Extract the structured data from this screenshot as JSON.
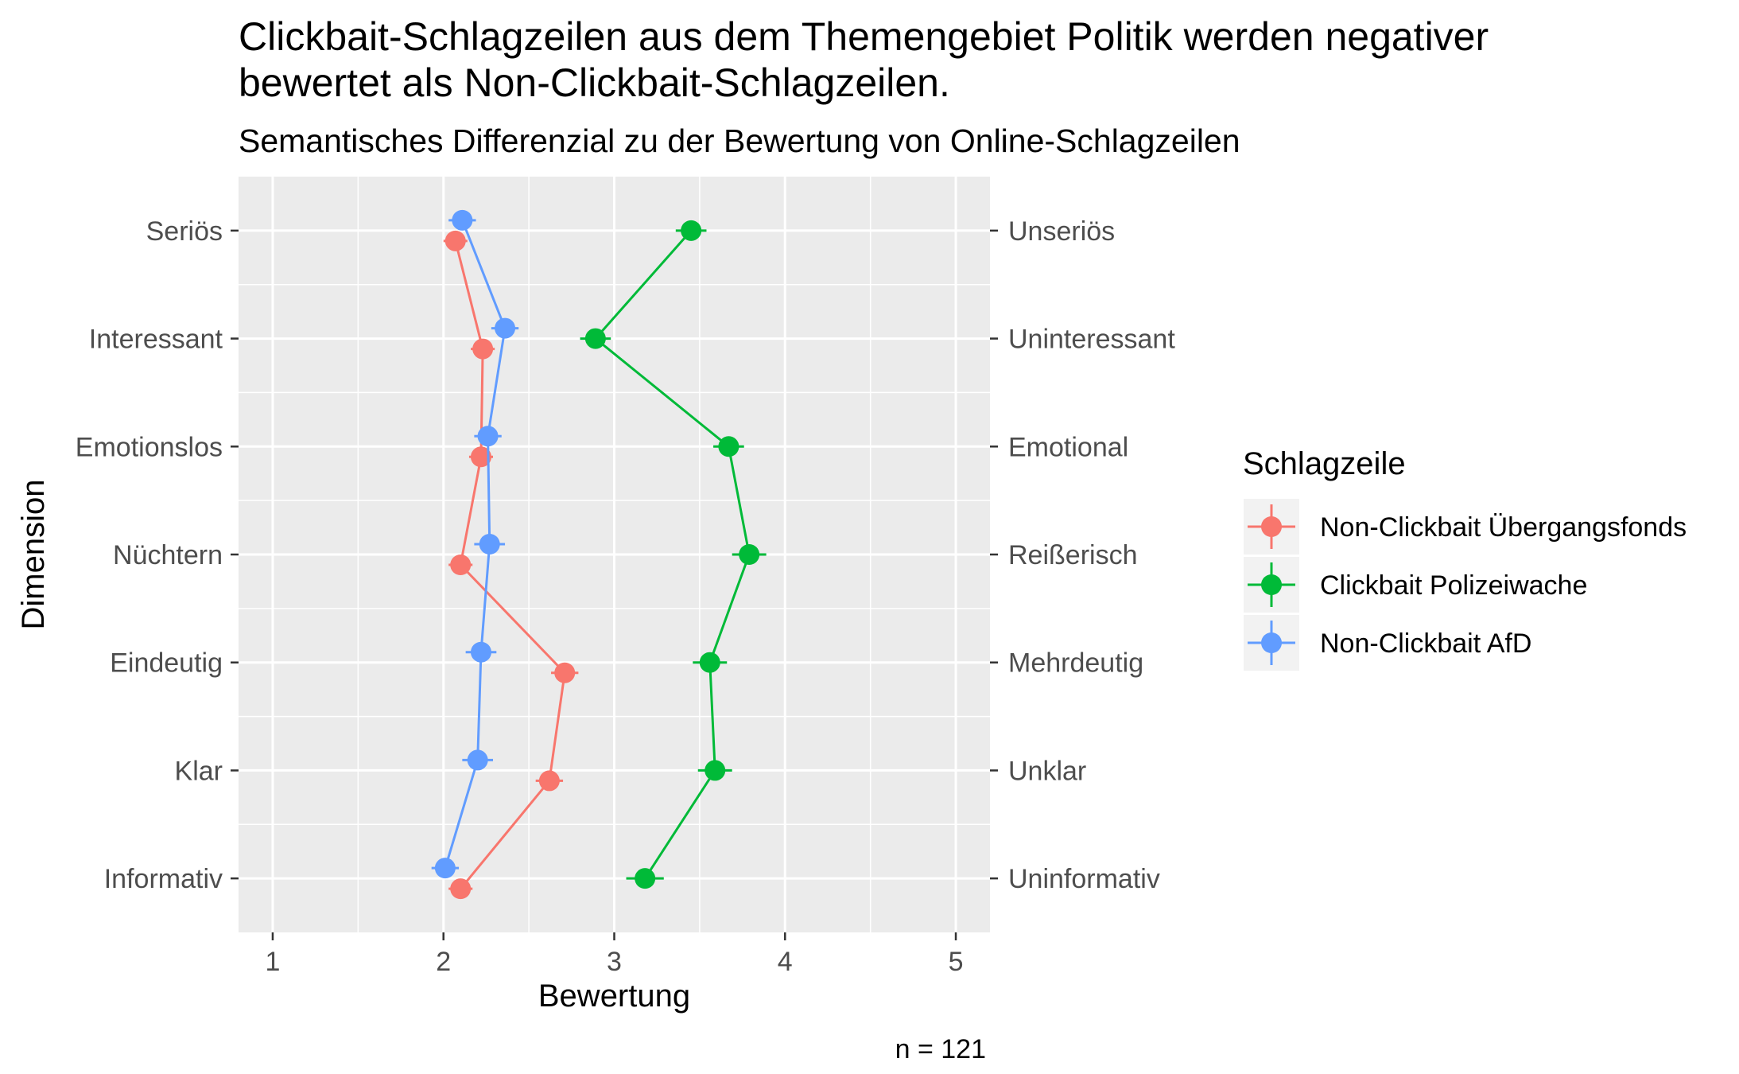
{
  "chart_data": {
    "type": "line",
    "orientation": "horizontal",
    "title": "Clickbait-Schlagzeilen aus dem Themengebiet Politik werden negativer\nbewertet als Non-Clickbait-Schlagzeilen.",
    "subtitle": "Semantisches Differenzial zu der Bewertung von Online-Schlagzeilen",
    "xlabel": "Bewertung",
    "ylabel": "Dimension",
    "caption": "n = 121",
    "xlim": [
      0.8,
      5.2
    ],
    "x_ticks": [
      "1",
      "2",
      "3",
      "4",
      "5"
    ],
    "grid": true,
    "legend_title": "Schlagzeile",
    "legend_position": "right",
    "dimensions_left": [
      "Seriös",
      "Interessant",
      "Emotionslos",
      "Nüchtern",
      "Eindeutig",
      "Klar",
      "Informativ"
    ],
    "dimensions_right": [
      "Unseriös",
      "Uninteressant",
      "Emotional",
      "Reißerisch",
      "Mehrdeutig",
      "Unklar",
      "Uninformativ"
    ],
    "series": [
      {
        "name": "Non-Clickbait Übergangsfonds",
        "color": "#F8766D",
        "values": [
          2.07,
          2.23,
          2.22,
          2.1,
          2.71,
          2.62,
          2.1
        ],
        "errors": [
          0.07,
          0.07,
          0.07,
          0.07,
          0.08,
          0.08,
          0.07
        ]
      },
      {
        "name": "Clickbait Polizeiwache",
        "color": "#00BA38",
        "values": [
          3.45,
          2.89,
          3.67,
          3.79,
          3.56,
          3.59,
          3.18
        ],
        "errors": [
          0.09,
          0.09,
          0.09,
          0.1,
          0.1,
          0.1,
          0.11
        ]
      },
      {
        "name": "Non-Clickbait AfD",
        "color": "#619CFF",
        "values": [
          2.11,
          2.36,
          2.26,
          2.27,
          2.22,
          2.2,
          2.01
        ],
        "errors": [
          0.08,
          0.08,
          0.08,
          0.09,
          0.09,
          0.09,
          0.08
        ]
      }
    ]
  }
}
